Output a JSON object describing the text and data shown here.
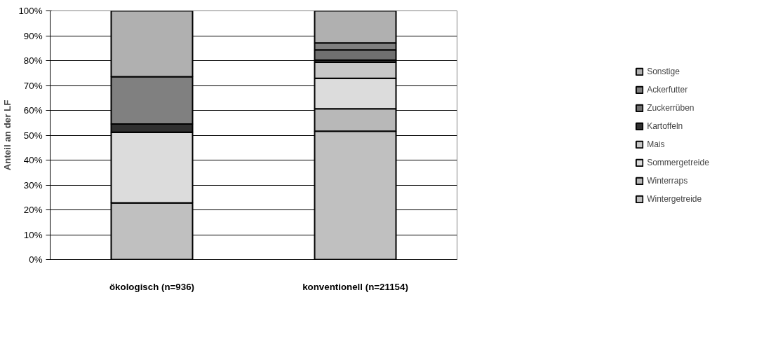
{
  "chart_data": {
    "type": "bar",
    "stacked": true,
    "ylabel": "Anteil an der LF",
    "categories": [
      "ökologisch (n=936)",
      "konventionell (n=21154)"
    ],
    "series": [
      {
        "name": "Wintergetreide",
        "color": "#c0c0c0",
        "values": [
          22.8,
          51.6
        ]
      },
      {
        "name": "Winterraps",
        "color": "#b8b8b8",
        "values": [
          null,
          9.0
        ]
      },
      {
        "name": "Sommergetreide",
        "color": "#dcdcdc",
        "values": [
          28.4,
          12.3
        ]
      },
      {
        "name": "Mais",
        "color": "#c8c8c8",
        "values": [
          null,
          6.4
        ]
      },
      {
        "name": "Kartoffeln",
        "color": "#303030",
        "values": [
          3.3,
          0.9
        ]
      },
      {
        "name": "Zuckerrüben",
        "color": "#707070",
        "values": [
          null,
          4.1
        ]
      },
      {
        "name": "Ackerfutter",
        "color": "#808080",
        "values": [
          19.0,
          2.8
        ]
      },
      {
        "name": "Sonstige",
        "color": "#b0b0b0",
        "values": [
          26.5,
          12.9
        ]
      }
    ],
    "ylim": [
      0,
      100
    ],
    "yticks": [
      {
        "value": 0,
        "label": "0%"
      },
      {
        "value": 10,
        "label": "10%"
      },
      {
        "value": 20,
        "label": "20%"
      },
      {
        "value": 30,
        "label": "30%"
      },
      {
        "value": 40,
        "label": "40%"
      },
      {
        "value": 50,
        "label": "50%"
      },
      {
        "value": 60,
        "label": "60%"
      },
      {
        "value": 70,
        "label": "70%"
      },
      {
        "value": 80,
        "label": "80%"
      },
      {
        "value": 90,
        "label": "90%"
      },
      {
        "value": 100,
        "label": "100%"
      }
    ],
    "grid": "y",
    "legend": "right"
  }
}
